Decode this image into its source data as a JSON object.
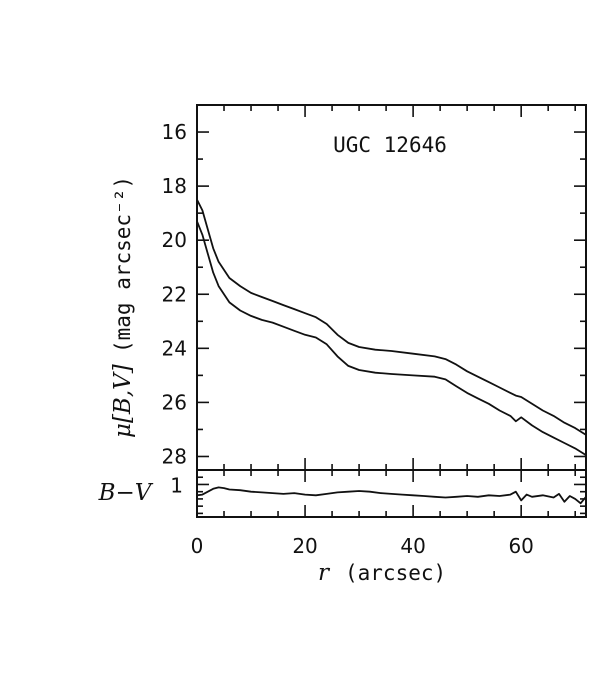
{
  "chart_data": [
    {
      "type": "line",
      "title": "UGC 12646",
      "ylabel_symbol": "μ[B,V]",
      "ylabel_text": "(mag arcsec⁻²)",
      "xlim": [
        0,
        72
      ],
      "ylim": [
        28.5,
        15
      ],
      "y_inverted": true,
      "yticks": [
        16,
        18,
        20,
        22,
        24,
        26,
        28
      ],
      "grid": false,
      "series": [
        {
          "x": [
            0,
            1,
            2,
            3,
            4,
            5,
            6,
            8,
            10,
            12,
            14,
            16,
            18,
            20,
            22,
            24,
            26,
            28,
            30,
            33,
            36,
            40,
            44,
            46,
            48,
            50,
            52,
            54,
            56,
            58,
            59,
            60,
            62,
            64,
            66,
            68,
            70,
            72
          ],
          "values": [
            18.5,
            18.9,
            19.6,
            20.3,
            20.8,
            21.1,
            21.4,
            21.7,
            21.95,
            22.1,
            22.25,
            22.4,
            22.55,
            22.7,
            22.85,
            23.1,
            23.5,
            23.8,
            23.95,
            24.05,
            24.1,
            24.2,
            24.3,
            24.4,
            24.6,
            24.85,
            25.05,
            25.25,
            25.45,
            25.65,
            25.75,
            25.8,
            26.05,
            26.3,
            26.5,
            26.75,
            26.95,
            27.2
          ]
        },
        {
          "x": [
            0,
            1,
            2,
            3,
            4,
            5,
            6,
            8,
            10,
            12,
            14,
            16,
            18,
            20,
            22,
            24,
            26,
            28,
            30,
            33,
            36,
            40,
            44,
            46,
            48,
            50,
            52,
            54,
            56,
            58,
            59,
            60,
            62,
            64,
            66,
            68,
            70,
            72
          ],
          "values": [
            19.3,
            19.8,
            20.5,
            21.2,
            21.7,
            22.0,
            22.3,
            22.6,
            22.8,
            22.95,
            23.05,
            23.2,
            23.35,
            23.5,
            23.6,
            23.85,
            24.3,
            24.65,
            24.8,
            24.9,
            24.95,
            25.0,
            25.05,
            25.15,
            25.4,
            25.65,
            25.85,
            26.05,
            26.3,
            26.5,
            26.7,
            26.55,
            26.85,
            27.1,
            27.3,
            27.5,
            27.7,
            27.95
          ]
        }
      ]
    },
    {
      "type": "line",
      "ylabel": "B−V",
      "xlabel_symbol": "r",
      "xlabel_text": "(arcsec)",
      "xlim": [
        0,
        72
      ],
      "ylim": [
        0.55,
        1.2
      ],
      "xticks": [
        0,
        20,
        40,
        60
      ],
      "yticks": [
        1
      ],
      "grid": false,
      "series": [
        {
          "x": [
            0,
            1,
            2,
            3,
            4,
            5,
            6,
            8,
            10,
            12,
            14,
            16,
            18,
            20,
            22,
            24,
            26,
            28,
            30,
            32,
            34,
            36,
            38,
            40,
            42,
            44,
            46,
            48,
            50,
            52,
            54,
            56,
            58,
            59,
            60,
            61,
            62,
            64,
            66,
            67,
            68,
            69,
            70,
            71,
            72
          ],
          "values": [
            0.85,
            0.86,
            0.9,
            0.94,
            0.96,
            0.95,
            0.93,
            0.92,
            0.9,
            0.89,
            0.88,
            0.87,
            0.88,
            0.86,
            0.85,
            0.87,
            0.89,
            0.9,
            0.91,
            0.9,
            0.88,
            0.87,
            0.86,
            0.85,
            0.84,
            0.83,
            0.82,
            0.83,
            0.84,
            0.83,
            0.85,
            0.84,
            0.86,
            0.9,
            0.78,
            0.86,
            0.83,
            0.85,
            0.82,
            0.87,
            0.76,
            0.84,
            0.8,
            0.74,
            0.83
          ]
        }
      ]
    }
  ]
}
